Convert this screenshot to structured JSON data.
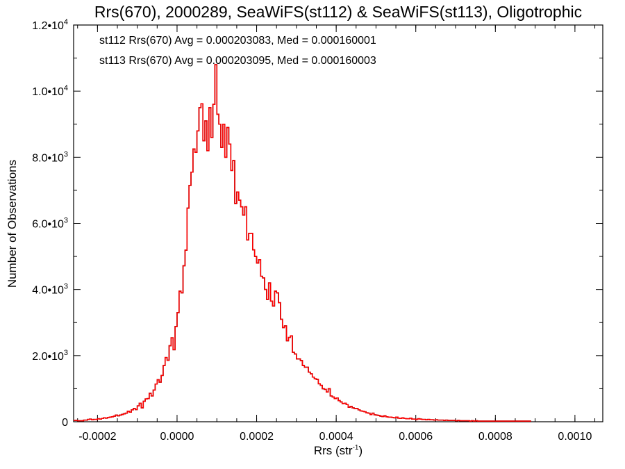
{
  "chart_data": {
    "type": "line",
    "title": "Rrs(670), 2000289, SeaWiFS(st112) & SeaWiFS(st113), Oligotrophic",
    "xlabel": "Rrs (str",
    "xlabel_sup": "-1",
    "xlabel_close": ")",
    "ylabel": "Number of Observations",
    "xlim": [
      -0.00026,
      0.00107
    ],
    "ylim": [
      0,
      12000
    ],
    "grid": false,
    "legend_position": "top-left",
    "annotations": [
      {
        "text": "st112 Rrs(670) Avg = 0.000203083, Med = 0.000160001",
        "color": "#000000"
      },
      {
        "text": "st113 Rrs(670) Avg = 0.000203095, Med = 0.000160003",
        "color": "#ff0000"
      }
    ],
    "x_ticks": [
      {
        "value": -0.0002,
        "label": "-0.0002"
      },
      {
        "value": 0.0,
        "label": "0.0000"
      },
      {
        "value": 0.0002,
        "label": "0.0002"
      },
      {
        "value": 0.0004,
        "label": "0.0004"
      },
      {
        "value": 0.0006,
        "label": "0.0006"
      },
      {
        "value": 0.0008,
        "label": "0.0008"
      },
      {
        "value": 0.001,
        "label": "0.0010"
      }
    ],
    "y_ticks": [
      {
        "value": 0,
        "mant": "0",
        "exp": ""
      },
      {
        "value": 2000,
        "mant": "2.0•10",
        "exp": "3"
      },
      {
        "value": 4000,
        "mant": "4.0•10",
        "exp": "3"
      },
      {
        "value": 6000,
        "mant": "6.0•10",
        "exp": "3"
      },
      {
        "value": 8000,
        "mant": "8.0•10",
        "exp": "3"
      },
      {
        "value": 10000,
        "mant": "1.0•10",
        "exp": "4"
      },
      {
        "value": 12000,
        "mant": "1.2•10",
        "exp": "4"
      }
    ],
    "series": [
      {
        "name": "st112",
        "color": "#000000",
        "x_start": -0.00026,
        "bin_width": 5e-06,
        "values": [
          40,
          40,
          30,
          30,
          30,
          50,
          50,
          70,
          80,
          60,
          70,
          70,
          90,
          80,
          100,
          120,
          110,
          130,
          140,
          150,
          170,
          200,
          180,
          200,
          220,
          240,
          260,
          320,
          290,
          360,
          400,
          370,
          480,
          560,
          420,
          620,
          690,
          700,
          860,
          780,
          960,
          1140,
          1270,
          1200,
          1400,
          1700,
          1940,
          1860,
          2300,
          2540,
          2180,
          2880,
          3300,
          3950,
          3900,
          4720,
          5190,
          6460,
          7150,
          7550,
          8250,
          8150,
          8800,
          9500,
          9620,
          8500,
          9100,
          8200,
          9500,
          8600,
          9600,
          10800,
          9300,
          9000,
          8300,
          9000,
          8000,
          8900,
          8400,
          7600,
          7900,
          6600,
          6950,
          6700,
          6500,
          6250,
          6500,
          5500,
          5700,
          5700,
          5200,
          5000,
          4800,
          4900,
          4400,
          4350,
          4000,
          3700,
          4200,
          3650,
          3500,
          3950,
          3900,
          3600,
          3100,
          2850,
          2900,
          2450,
          2550,
          2600,
          2100,
          2050,
          1900,
          1900,
          1850,
          1700,
          1650,
          1650,
          1500,
          1450,
          1350,
          1300,
          1280,
          1150,
          1100,
          1000,
          980,
          900,
          1000,
          780,
          750,
          700,
          720,
          640,
          600,
          550,
          560,
          520,
          440,
          460,
          420,
          400,
          400,
          360,
          330,
          320,
          300,
          270,
          260,
          220,
          260,
          210,
          200,
          190,
          170,
          160,
          180,
          150,
          140,
          140,
          130,
          120,
          140,
          110,
          100,
          120,
          100,
          90,
          90,
          110,
          80,
          80,
          70,
          90,
          80,
          70,
          70,
          60,
          70,
          60,
          60,
          50,
          60,
          50,
          50,
          50,
          40,
          50,
          40,
          40,
          40,
          40,
          30,
          40,
          30,
          30,
          30,
          30,
          30,
          20,
          30,
          20,
          30,
          20,
          20,
          20,
          20,
          20,
          20,
          20,
          20,
          20,
          20,
          20,
          20,
          20,
          20,
          20,
          20,
          20,
          20,
          20,
          20,
          20,
          20,
          20,
          20,
          20,
          20,
          20
        ]
      },
      {
        "name": "st113",
        "color": "#ff0000",
        "x_start": -0.00026,
        "bin_width": 5e-06,
        "values": [
          40,
          40,
          30,
          30,
          30,
          50,
          50,
          70,
          80,
          60,
          70,
          70,
          90,
          80,
          100,
          120,
          110,
          130,
          140,
          150,
          170,
          200,
          180,
          200,
          220,
          240,
          260,
          320,
          290,
          360,
          400,
          370,
          480,
          560,
          420,
          620,
          690,
          700,
          860,
          780,
          960,
          1140,
          1270,
          1200,
          1400,
          1700,
          1940,
          1860,
          2300,
          2540,
          2180,
          2880,
          3300,
          3950,
          3900,
          4720,
          5190,
          6460,
          7150,
          7550,
          8250,
          8150,
          8800,
          9500,
          9620,
          8500,
          9100,
          8200,
          9500,
          8600,
          9600,
          10800,
          9300,
          9000,
          8300,
          9000,
          8000,
          8900,
          8400,
          7600,
          7900,
          6600,
          6950,
          6700,
          6500,
          6250,
          6500,
          5500,
          5700,
          5700,
          5200,
          5000,
          4800,
          4900,
          4400,
          4350,
          4000,
          3700,
          4200,
          3650,
          3500,
          3950,
          3900,
          3600,
          3100,
          2850,
          2900,
          2450,
          2550,
          2600,
          2100,
          2050,
          1900,
          1900,
          1850,
          1700,
          1650,
          1650,
          1500,
          1450,
          1350,
          1300,
          1280,
          1150,
          1100,
          1000,
          980,
          900,
          1000,
          780,
          750,
          700,
          720,
          640,
          600,
          550,
          560,
          520,
          440,
          460,
          420,
          400,
          400,
          360,
          330,
          320,
          300,
          270,
          260,
          220,
          260,
          210,
          200,
          190,
          170,
          160,
          180,
          150,
          140,
          140,
          130,
          120,
          140,
          110,
          100,
          120,
          100,
          90,
          90,
          110,
          80,
          80,
          70,
          90,
          80,
          70,
          70,
          60,
          70,
          60,
          60,
          50,
          60,
          50,
          50,
          50,
          40,
          50,
          40,
          40,
          40,
          40,
          30,
          40,
          30,
          30,
          30,
          30,
          30,
          20,
          30,
          20,
          30,
          20,
          20,
          20,
          20,
          20,
          20,
          20,
          20,
          20,
          20,
          20,
          20,
          20,
          20,
          20,
          20,
          20,
          20,
          20,
          20,
          20,
          20,
          20,
          20,
          20,
          20,
          20
        ]
      }
    ]
  }
}
